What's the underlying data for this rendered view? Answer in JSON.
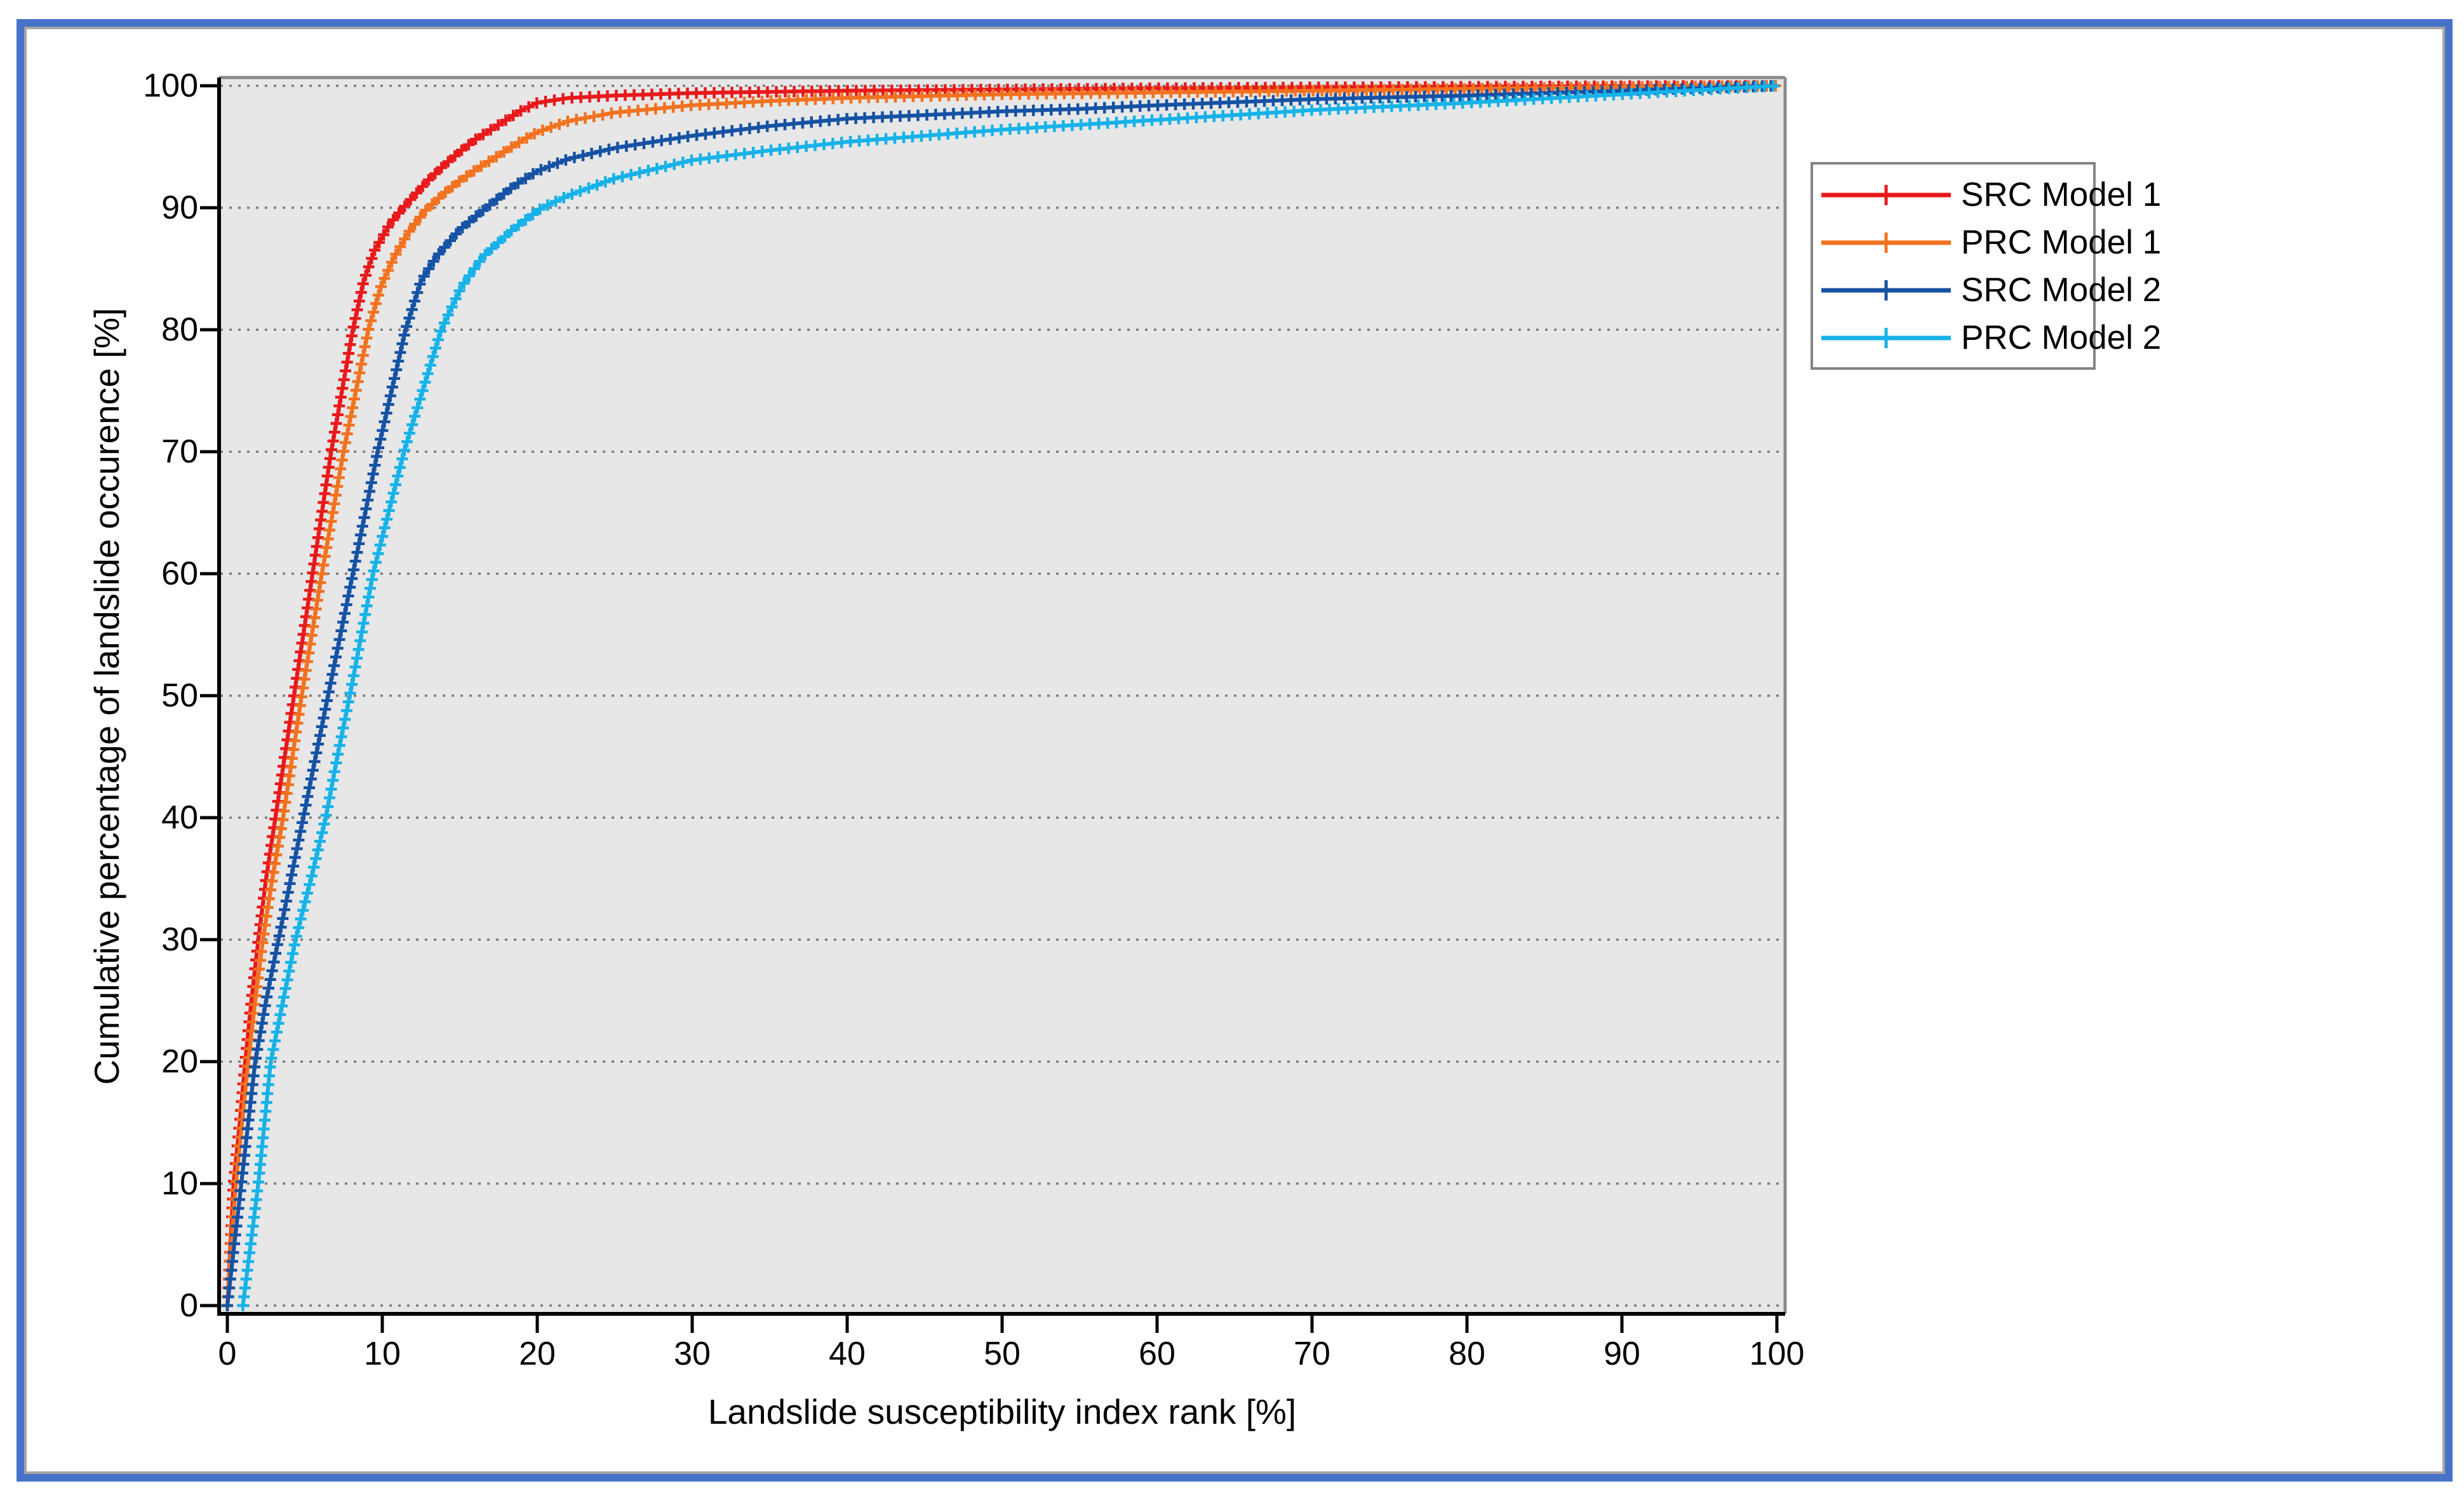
{
  "figure": {
    "outer_border_color": "#4673c8",
    "inner_border_color": "#a6a6a6",
    "background": "#ffffff"
  },
  "chart_data": {
    "type": "line",
    "title": "",
    "xlabel": "Landslide susceptibility index rank [%]",
    "ylabel": "Cumulative percentage of landslide occurence [%]",
    "xlim": [
      0,
      100
    ],
    "ylim": [
      0,
      100
    ],
    "x_ticks": [
      0,
      10,
      20,
      30,
      40,
      50,
      60,
      70,
      80,
      90,
      100
    ],
    "y_ticks": [
      0,
      10,
      20,
      30,
      40,
      50,
      60,
      70,
      80,
      90,
      100
    ],
    "grid": "horizontal dotted gridlines only, gray, at every 10 units",
    "plot_bg": "#e7e7e7",
    "grid_color": "#7c7c7c",
    "axis_color": "#000000",
    "box_color": "#8a8a8a",
    "legend_position": "outside top-right, white box with gray border",
    "marker": "+",
    "series": [
      {
        "name": "SRC Model 1",
        "color": "#e8191b",
        "marker": "+",
        "points": [
          [
            0,
            0
          ],
          [
            0.2,
            5
          ],
          [
            0.4,
            10
          ],
          [
            0.8,
            15
          ],
          [
            1.15,
            20
          ],
          [
            1.55,
            25
          ],
          [
            2,
            30
          ],
          [
            2.5,
            35
          ],
          [
            3.1,
            40
          ],
          [
            3.7,
            45
          ],
          [
            4.3,
            50
          ],
          [
            4.9,
            55
          ],
          [
            5.5,
            60
          ],
          [
            6.1,
            65
          ],
          [
            6.7,
            70
          ],
          [
            7.4,
            75
          ],
          [
            8.1,
            80
          ],
          [
            8.8,
            84
          ],
          [
            9.5,
            86.5
          ],
          [
            10.5,
            88.7
          ],
          [
            11.7,
            90.5
          ],
          [
            13,
            92.3
          ],
          [
            14,
            93.5
          ],
          [
            15,
            94.6
          ],
          [
            16,
            95.6
          ],
          [
            17,
            96.4
          ],
          [
            18,
            97.2
          ],
          [
            19,
            98
          ],
          [
            20,
            98.6
          ],
          [
            22,
            99
          ],
          [
            25,
            99.2
          ],
          [
            30,
            99.4
          ],
          [
            35,
            99.5
          ],
          [
            40,
            99.6
          ],
          [
            50,
            99.7
          ],
          [
            60,
            99.8
          ],
          [
            70,
            99.87
          ],
          [
            80,
            99.92
          ],
          [
            90,
            99.97
          ],
          [
            100,
            100
          ]
        ]
      },
      {
        "name": "PRC Model 1",
        "color": "#f2721f",
        "marker": "+",
        "points": [
          [
            0,
            0
          ],
          [
            0.25,
            5
          ],
          [
            0.55,
            10
          ],
          [
            0.95,
            15
          ],
          [
            1.35,
            20
          ],
          [
            1.8,
            25
          ],
          [
            2.3,
            30
          ],
          [
            2.9,
            35
          ],
          [
            3.6,
            40
          ],
          [
            4.2,
            45
          ],
          [
            4.8,
            50
          ],
          [
            5.45,
            55
          ],
          [
            6.1,
            60
          ],
          [
            6.8,
            65
          ],
          [
            7.5,
            70
          ],
          [
            8.3,
            75
          ],
          [
            9.1,
            80
          ],
          [
            9.9,
            83.5
          ],
          [
            10.7,
            85.8
          ],
          [
            11.7,
            88
          ],
          [
            12.8,
            89.8
          ],
          [
            14,
            91.2
          ],
          [
            15,
            92.2
          ],
          [
            16,
            93.1
          ],
          [
            17,
            93.9
          ],
          [
            18,
            94.7
          ],
          [
            19,
            95.5
          ],
          [
            20,
            96.2
          ],
          [
            22,
            97.1
          ],
          [
            25,
            97.8
          ],
          [
            30,
            98.4
          ],
          [
            35,
            98.75
          ],
          [
            40,
            99
          ],
          [
            50,
            99.3
          ],
          [
            60,
            99.45
          ],
          [
            70,
            99.6
          ],
          [
            80,
            99.75
          ],
          [
            90,
            99.9
          ],
          [
            100,
            100
          ]
        ]
      },
      {
        "name": "SRC Model 2",
        "color": "#1552a4",
        "marker": "+",
        "points": [
          [
            0,
            0
          ],
          [
            0.45,
            5
          ],
          [
            0.9,
            10
          ],
          [
            1.35,
            15
          ],
          [
            1.8,
            20
          ],
          [
            2.5,
            25
          ],
          [
            3.3,
            30
          ],
          [
            4.1,
            35
          ],
          [
            4.9,
            40
          ],
          [
            5.7,
            45
          ],
          [
            6.5,
            50
          ],
          [
            7.3,
            55
          ],
          [
            8.1,
            60
          ],
          [
            8.9,
            65
          ],
          [
            9.7,
            70
          ],
          [
            10.6,
            75
          ],
          [
            11.5,
            80
          ],
          [
            12.5,
            84
          ],
          [
            13.5,
            86
          ],
          [
            15,
            88.2
          ],
          [
            17,
            90.3
          ],
          [
            18.5,
            91.8
          ],
          [
            20,
            93
          ],
          [
            22,
            94
          ],
          [
            25,
            94.9
          ],
          [
            30,
            95.9
          ],
          [
            35,
            96.7
          ],
          [
            40,
            97.3
          ],
          [
            45,
            97.6
          ],
          [
            50,
            97.9
          ],
          [
            55,
            98.1
          ],
          [
            60,
            98.4
          ],
          [
            65,
            98.65
          ],
          [
            70,
            98.9
          ],
          [
            75,
            99.05
          ],
          [
            80,
            99.2
          ],
          [
            85,
            99.4
          ],
          [
            90,
            99.6
          ],
          [
            95,
            99.8
          ],
          [
            100,
            100
          ]
        ]
      },
      {
        "name": "PRC Model 2",
        "color": "#16b2e8",
        "marker": "+",
        "points": [
          [
            1,
            0
          ],
          [
            1.5,
            5
          ],
          [
            2,
            10
          ],
          [
            2.4,
            15
          ],
          [
            2.8,
            20
          ],
          [
            3.6,
            25
          ],
          [
            4.4,
            30
          ],
          [
            5.4,
            35
          ],
          [
            6.35,
            40
          ],
          [
            7.1,
            45
          ],
          [
            7.9,
            50
          ],
          [
            8.65,
            55
          ],
          [
            9.4,
            60
          ],
          [
            10.4,
            65
          ],
          [
            11.4,
            70
          ],
          [
            12.6,
            75
          ],
          [
            13.8,
            80
          ],
          [
            15.1,
            83.5
          ],
          [
            16.5,
            86
          ],
          [
            18.4,
            88.2
          ],
          [
            20.3,
            90
          ],
          [
            22,
            91
          ],
          [
            25,
            92.4
          ],
          [
            30,
            93.9
          ],
          [
            35,
            94.7
          ],
          [
            40,
            95.4
          ],
          [
            45,
            95.9
          ],
          [
            50,
            96.4
          ],
          [
            55,
            96.8
          ],
          [
            60,
            97.2
          ],
          [
            65,
            97.6
          ],
          [
            70,
            98
          ],
          [
            75,
            98.3
          ],
          [
            80,
            98.6
          ],
          [
            85,
            98.95
          ],
          [
            90,
            99.3
          ],
          [
            95,
            99.65
          ],
          [
            100,
            100
          ]
        ]
      }
    ]
  }
}
